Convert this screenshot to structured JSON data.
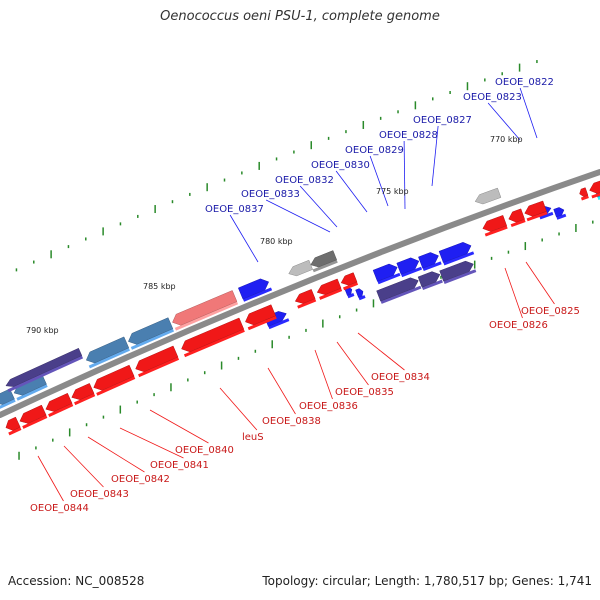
{
  "title": "Oenococcus oeni PSU-1, complete genome",
  "footer": {
    "accession": "Accession: NC_008528",
    "topology": "Topology: circular; Length: 1,780,517 bp; Genes: 1,741"
  },
  "colors": {
    "backbone": "#8a8a8a",
    "forward_cds": "#1f1ff2",
    "forward_label": "#1a1aa8",
    "reverse_cds": "#f01818",
    "reverse_label": "#c81818",
    "pseudo": "#4a3f8a",
    "steel": "#4a7fb0",
    "salmon": "#f07878",
    "gray": "#6e6e6e",
    "lightgray": "#bcbcbc",
    "cyan": "#18b4f0",
    "gc_marks": "#2a8a2a"
  },
  "scale_labels": [
    {
      "id": "770",
      "text": "770 kbp"
    },
    {
      "id": "775",
      "text": "775 kbp"
    },
    {
      "id": "780",
      "text": "780 kbp"
    },
    {
      "id": "785",
      "text": "785 kbp"
    },
    {
      "id": "790",
      "text": "790 kbp"
    }
  ],
  "forward_genes": [
    "OEOE_0822",
    "OEOE_0823",
    "OEOE_0827",
    "OEOE_0828",
    "OEOE_0829",
    "OEOE_0830",
    "OEOE_0832",
    "OEOE_0833",
    "OEOE_0837"
  ],
  "reverse_genes": [
    "OEOE_0825",
    "OEOE_0826",
    "OEOE_0834",
    "OEOE_0835",
    "OEOE_0836",
    "OEOE_0838",
    "leuS",
    "OEOE_0840",
    "OEOE_0841",
    "OEOE_0842",
    "OEOE_0843",
    "OEOE_0844"
  ]
}
